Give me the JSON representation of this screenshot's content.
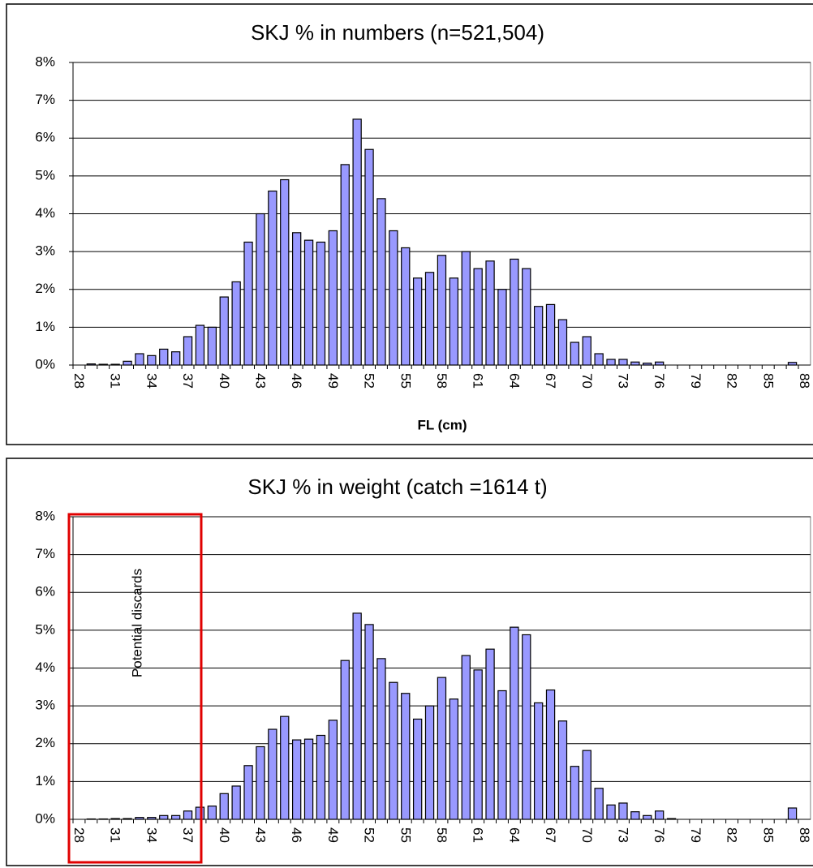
{
  "chart_data": [
    {
      "type": "bar",
      "title": "SKJ % in numbers (n=521,504)",
      "x_label": "FL (cm)",
      "color": "#9999ff",
      "grid": true,
      "categories": [
        28,
        null,
        null,
        31,
        null,
        null,
        34,
        null,
        null,
        37,
        null,
        null,
        40,
        null,
        null,
        43,
        null,
        null,
        46,
        null,
        null,
        49,
        null,
        null,
        52,
        null,
        null,
        55,
        null,
        null,
        58,
        null,
        null,
        61,
        null,
        null,
        64,
        null,
        null,
        67,
        null,
        null,
        70,
        null,
        null,
        73,
        null,
        null,
        76,
        null,
        null,
        79,
        null,
        null,
        82,
        null,
        null,
        85,
        null,
        null,
        88
      ],
      "values": [
        0,
        0.03,
        0.02,
        0.02,
        0.1,
        0.3,
        0.25,
        0.42,
        0.35,
        0.75,
        1.05,
        1.0,
        1.8,
        2.2,
        3.25,
        4.0,
        4.6,
        4.9,
        3.5,
        3.3,
        3.25,
        3.55,
        5.3,
        6.5,
        5.7,
        4.4,
        3.55,
        3.1,
        2.3,
        2.45,
        2.9,
        2.3,
        3.0,
        2.55,
        2.75,
        2.0,
        2.8,
        2.55,
        1.55,
        1.6,
        1.2,
        0.6,
        0.75,
        0.3,
        0.15,
        0.15,
        0.08,
        0.05,
        0.08,
        0,
        0,
        0,
        0,
        0,
        0,
        0,
        0,
        0,
        0,
        0.07,
        0
      ],
      "ylim": [
        0,
        8
      ],
      "yticks": [
        {
          "value": 0,
          "label": "0%"
        },
        {
          "value": 1,
          "label": "1%"
        },
        {
          "value": 2,
          "label": "2%"
        },
        {
          "value": 3,
          "label": "3%"
        },
        {
          "value": 4,
          "label": "4%"
        },
        {
          "value": 5,
          "label": "5%"
        },
        {
          "value": 6,
          "label": "6%"
        },
        {
          "value": 7,
          "label": "7%"
        },
        {
          "value": 8,
          "label": "8%"
        }
      ]
    },
    {
      "type": "bar",
      "title": "SKJ % in weight (catch =1614 t)",
      "x_label": "FL (cm)",
      "color": "#9999ff",
      "grid": true,
      "annotation": "Potential discards",
      "categories": [
        28,
        null,
        null,
        31,
        null,
        null,
        34,
        null,
        null,
        37,
        null,
        null,
        40,
        null,
        null,
        43,
        null,
        null,
        46,
        null,
        null,
        49,
        null,
        null,
        52,
        null,
        null,
        55,
        null,
        null,
        58,
        null,
        null,
        61,
        null,
        null,
        64,
        null,
        null,
        67,
        null,
        null,
        70,
        null,
        null,
        73,
        null,
        null,
        76,
        null,
        null,
        79,
        null,
        null,
        82,
        null,
        null,
        85,
        null,
        null,
        88
      ],
      "values": [
        0,
        0.01,
        0.01,
        0.02,
        0.02,
        0.05,
        0.05,
        0.1,
        0.1,
        0.22,
        0.32,
        0.35,
        0.68,
        0.88,
        1.42,
        1.92,
        2.38,
        2.72,
        2.1,
        2.12,
        2.22,
        2.62,
        4.2,
        5.45,
        5.15,
        4.25,
        3.62,
        3.33,
        2.65,
        3.0,
        3.75,
        3.18,
        4.33,
        3.95,
        4.5,
        3.4,
        5.08,
        4.88,
        3.08,
        3.42,
        2.6,
        1.4,
        1.82,
        0.82,
        0.38,
        0.43,
        0.2,
        0.1,
        0.22,
        0.02,
        0,
        0,
        0,
        0,
        0,
        0,
        0,
        0,
        0,
        0.3,
        0
      ],
      "ylim": [
        0,
        8
      ],
      "yticks": [
        {
          "value": 0,
          "label": "0%"
        },
        {
          "value": 1,
          "label": "1%"
        },
        {
          "value": 2,
          "label": "2%"
        },
        {
          "value": 3,
          "label": "3%"
        },
        {
          "value": 4,
          "label": "4%"
        },
        {
          "value": 5,
          "label": "5%"
        },
        {
          "value": 6,
          "label": "6%"
        },
        {
          "value": 7,
          "label": "7%"
        },
        {
          "value": 8,
          "label": "8%"
        }
      ]
    }
  ]
}
